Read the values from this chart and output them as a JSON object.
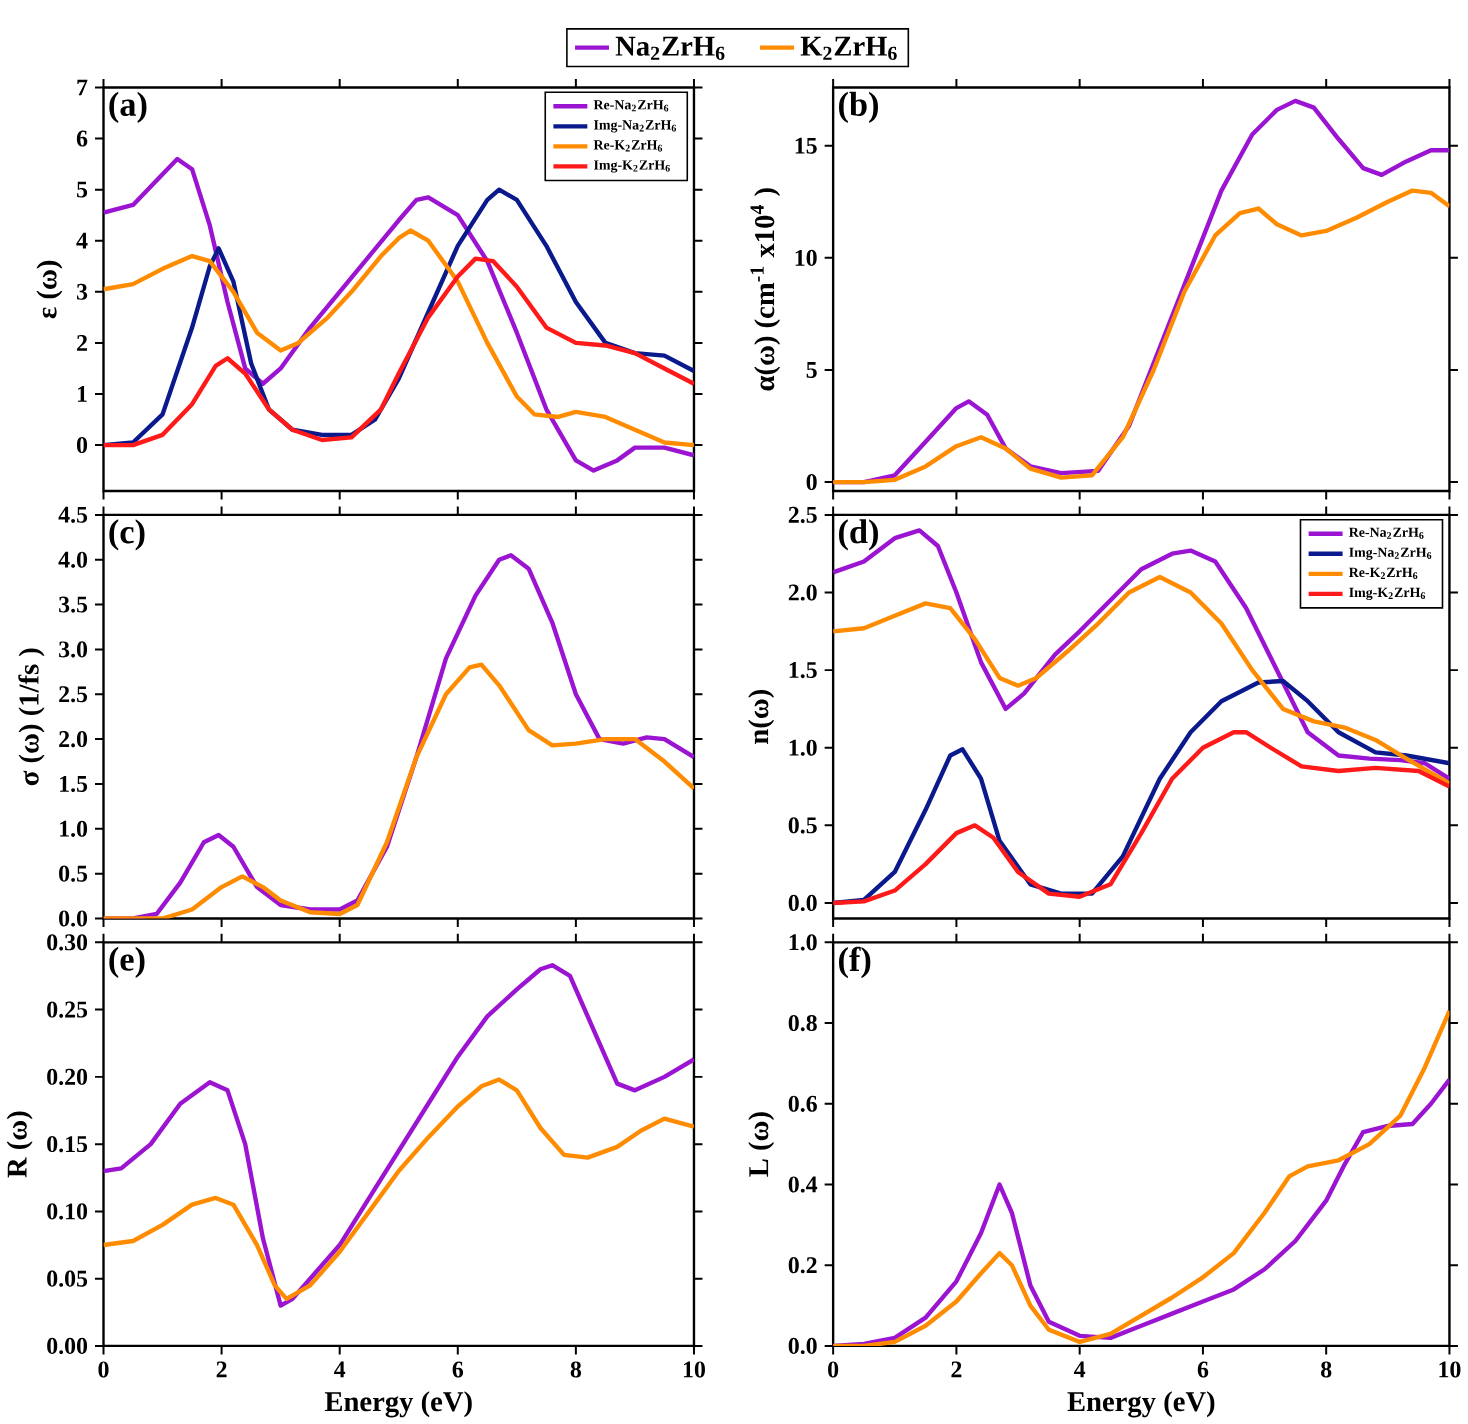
{
  "chart_data": [
    {
      "type": "line",
      "ylabel": "ε (ω)",
      "annotations": [
        "(a)"
      ],
      "xlim": [
        0,
        10
      ],
      "ylim": [
        -0.9,
        7
      ],
      "tick_labels": "y",
      "legend": "top right",
      "xticks": [
        {
          "value": 0,
          "label": null
        },
        {
          "value": 2,
          "label": null
        },
        {
          "value": 4,
          "label": null
        },
        {
          "value": 6,
          "label": null
        },
        {
          "value": 8,
          "label": null
        },
        {
          "value": 10,
          "label": null
        }
      ],
      "yticks": [
        0,
        1,
        2,
        3,
        4,
        5,
        6,
        7
      ],
      "series": [
        {
          "name": "Re-Na$_{2}$ZrH$_{6}$",
          "color": "#9b14d1",
          "x": [
            0,
            0.5,
            1.0,
            1.25,
            1.5,
            1.8,
            2.1,
            2.4,
            2.7,
            3.0,
            3.5,
            4.0,
            4.5,
            5.0,
            5.3,
            5.5,
            6.0,
            6.5,
            7.0,
            7.5,
            8.0,
            8.3,
            8.7,
            9.0,
            9.5,
            10
          ],
          "values": [
            4.55,
            4.7,
            5.3,
            5.6,
            5.4,
            4.3,
            2.8,
            1.5,
            1.2,
            1.5,
            2.3,
            3.0,
            3.7,
            4.4,
            4.8,
            4.85,
            4.5,
            3.6,
            2.2,
            0.7,
            -0.3,
            -0.5,
            -0.3,
            -0.05,
            -0.05,
            -0.2
          ]
        },
        {
          "name": "Img-Na$_{2}$ZrH$_{6}$",
          "color": "#0a1a8c",
          "x": [
            0,
            0.5,
            1.0,
            1.5,
            1.8,
            1.95,
            2.2,
            2.5,
            2.8,
            3.2,
            3.7,
            4.2,
            4.6,
            5.0,
            5.5,
            6.0,
            6.5,
            6.7,
            7.0,
            7.5,
            8.0,
            8.5,
            9.0,
            9.5,
            10
          ],
          "values": [
            0,
            0.05,
            0.6,
            2.3,
            3.5,
            3.85,
            3.2,
            1.6,
            0.7,
            0.3,
            0.2,
            0.2,
            0.5,
            1.3,
            2.6,
            3.9,
            4.8,
            5.0,
            4.8,
            3.9,
            2.8,
            2.0,
            1.8,
            1.75,
            1.45
          ]
        },
        {
          "name": "Re-K$_{2}$ZrH$_{6}$",
          "color": "#ff8c00",
          "x": [
            0,
            0.5,
            1.0,
            1.5,
            1.8,
            2.2,
            2.6,
            3.0,
            3.3,
            3.8,
            4.2,
            4.7,
            5.0,
            5.2,
            5.5,
            6.0,
            6.5,
            7.0,
            7.3,
            7.7,
            8.0,
            8.5,
            9.0,
            9.5,
            10
          ],
          "values": [
            3.05,
            3.15,
            3.45,
            3.7,
            3.6,
            3.0,
            2.2,
            1.85,
            2.0,
            2.5,
            3.0,
            3.7,
            4.05,
            4.2,
            4.0,
            3.2,
            2.0,
            0.95,
            0.6,
            0.55,
            0.65,
            0.55,
            0.3,
            0.05,
            0.0
          ]
        },
        {
          "name": "Img-K$_{2}$ZrH$_{6}$",
          "color": "#ff1a1a",
          "x": [
            0,
            0.5,
            1.0,
            1.5,
            1.9,
            2.1,
            2.4,
            2.8,
            3.2,
            3.7,
            4.2,
            4.7,
            5.0,
            5.5,
            6.0,
            6.3,
            6.6,
            7.0,
            7.5,
            8.0,
            8.5,
            9.0,
            9.5,
            10
          ],
          "values": [
            0,
            0.0,
            0.2,
            0.8,
            1.55,
            1.7,
            1.4,
            0.7,
            0.3,
            0.1,
            0.15,
            0.7,
            1.4,
            2.5,
            3.3,
            3.65,
            3.6,
            3.1,
            2.3,
            2.0,
            1.95,
            1.8,
            1.5,
            1.2
          ]
        }
      ]
    },
    {
      "type": "line",
      "ylabel": "α(ω) (cm$^{-1}$ x10$^{4}$ )",
      "annotations": [
        "(b)"
      ],
      "xlim": [
        0,
        10
      ],
      "ylim": [
        -0.4,
        17.6
      ],
      "tick_labels": "y",
      "legend": "top",
      "xticks": [
        {
          "value": 0,
          "label": null
        },
        {
          "value": 2,
          "label": null
        },
        {
          "value": 4,
          "label": null
        },
        {
          "value": 6,
          "label": null
        },
        {
          "value": 8,
          "label": null
        },
        {
          "value": 10,
          "label": null
        }
      ],
      "yticks": [
        0,
        5,
        10,
        15
      ],
      "series": [
        {
          "name": "Na$_{2}$ZrH$_{6}$",
          "color": "#9b14d1",
          "x": [
            0,
            0.5,
            1.0,
            1.5,
            2.0,
            2.2,
            2.5,
            2.8,
            3.2,
            3.7,
            4.3,
            4.8,
            5.3,
            5.8,
            6.3,
            6.8,
            7.2,
            7.5,
            7.8,
            8.2,
            8.6,
            8.9,
            9.3,
            9.7,
            10
          ],
          "values": [
            0,
            0,
            0.3,
            1.8,
            3.3,
            3.6,
            3.0,
            1.5,
            0.7,
            0.4,
            0.5,
            2.5,
            6.0,
            9.5,
            13.0,
            15.5,
            16.6,
            17.0,
            16.7,
            15.3,
            14.0,
            13.7,
            14.3,
            14.8,
            14.8
          ]
        },
        {
          "name": "K$_{2}$ZrH$_{6}$",
          "color": "#ff8c00",
          "x": [
            0,
            0.5,
            1.0,
            1.5,
            2.0,
            2.4,
            2.8,
            3.2,
            3.7,
            4.2,
            4.7,
            5.2,
            5.7,
            6.2,
            6.6,
            6.9,
            7.2,
            7.6,
            8.0,
            8.5,
            9.0,
            9.4,
            9.7,
            10
          ],
          "values": [
            0,
            0,
            0.1,
            0.7,
            1.6,
            2.0,
            1.5,
            0.6,
            0.2,
            0.3,
            2.0,
            5.0,
            8.5,
            11.0,
            12.0,
            12.2,
            11.5,
            11.0,
            11.2,
            11.8,
            12.5,
            13.0,
            12.9,
            12.3
          ]
        }
      ]
    },
    {
      "type": "line",
      "ylabel": "σ (ω) (1/fs )",
      "annotations": [
        "(c)"
      ],
      "xlim": [
        0,
        10
      ],
      "ylim": [
        0,
        4.5
      ],
      "tick_labels": "y",
      "xticks": [
        {
          "value": 0,
          "label": null
        },
        {
          "value": 2,
          "label": null
        },
        {
          "value": 4,
          "label": null
        },
        {
          "value": 6,
          "label": null
        },
        {
          "value": 8,
          "label": null
        },
        {
          "value": 10,
          "label": null
        }
      ],
      "yticks": [
        {
          "value": 0,
          "label": "0.0"
        },
        0.5,
        {
          "value": 1,
          "label": "1.0"
        },
        1.5,
        {
          "value": 2,
          "label": "2.0"
        },
        2.5,
        {
          "value": 3,
          "label": "3.0"
        },
        3.5,
        {
          "value": 4,
          "label": "4.0"
        },
        4.5
      ],
      "series": [
        {
          "color": "#9b14d1",
          "x": [
            0,
            0.5,
            0.9,
            1.3,
            1.7,
            1.95,
            2.2,
            2.6,
            3.0,
            3.5,
            4.0,
            4.3,
            4.8,
            5.3,
            5.8,
            6.3,
            6.7,
            6.9,
            7.2,
            7.6,
            8.0,
            8.4,
            8.8,
            9.2,
            9.5,
            10
          ],
          "values": [
            0,
            0,
            0.05,
            0.4,
            0.85,
            0.93,
            0.8,
            0.35,
            0.15,
            0.1,
            0.1,
            0.2,
            0.8,
            1.8,
            2.9,
            3.6,
            4.0,
            4.05,
            3.9,
            3.3,
            2.5,
            2.0,
            1.95,
            2.02,
            2.0,
            1.8
          ]
        },
        {
          "color": "#ff8c00",
          "x": [
            0,
            1.0,
            1.5,
            2.0,
            2.35,
            2.7,
            3.0,
            3.5,
            4.0,
            4.3,
            4.8,
            5.3,
            5.8,
            6.2,
            6.4,
            6.7,
            7.2,
            7.6,
            8.0,
            8.5,
            9.0,
            9.5,
            10
          ],
          "values": [
            0,
            0,
            0.1,
            0.35,
            0.47,
            0.35,
            0.2,
            0.07,
            0.05,
            0.15,
            0.85,
            1.8,
            2.5,
            2.8,
            2.83,
            2.6,
            2.1,
            1.93,
            1.95,
            2.0,
            2.0,
            1.75,
            1.45
          ]
        }
      ]
    },
    {
      "type": "line",
      "ylabel": "n(ω)",
      "annotations": [
        "(d)"
      ],
      "xlim": [
        0,
        10
      ],
      "ylim": [
        -0.1,
        2.5
      ],
      "tick_labels": "y",
      "legend": "top right",
      "xticks": [
        {
          "value": 0,
          "label": null
        },
        {
          "value": 2,
          "label": null
        },
        {
          "value": 4,
          "label": null
        },
        {
          "value": 6,
          "label": null
        },
        {
          "value": 8,
          "label": null
        },
        {
          "value": 10,
          "label": null
        }
      ],
      "yticks": [
        {
          "value": 0,
          "label": "0.0"
        },
        0.5,
        {
          "value": 1,
          "label": "1.0"
        },
        1.5,
        {
          "value": 2,
          "label": "2.0"
        },
        2.5
      ],
      "series": [
        {
          "name": "Re-Na$_{2}$ZrH$_{6}$",
          "color": "#9b14d1",
          "x": [
            0,
            0.5,
            1.0,
            1.4,
            1.7,
            2.0,
            2.4,
            2.8,
            3.1,
            3.6,
            4.0,
            4.5,
            5.0,
            5.5,
            5.8,
            6.2,
            6.7,
            7.2,
            7.7,
            8.2,
            8.7,
            9.2,
            9.6,
            10
          ],
          "values": [
            2.13,
            2.2,
            2.35,
            2.4,
            2.3,
            2.0,
            1.55,
            1.25,
            1.35,
            1.6,
            1.75,
            1.95,
            2.15,
            2.25,
            2.27,
            2.2,
            1.9,
            1.5,
            1.1,
            0.95,
            0.93,
            0.92,
            0.9,
            0.8
          ]
        },
        {
          "name": "Img-Na$_{2}$ZrH$_{6}$",
          "color": "#0a1a8c",
          "x": [
            0,
            0.5,
            1.0,
            1.5,
            1.9,
            2.1,
            2.4,
            2.7,
            3.2,
            3.7,
            4.2,
            4.7,
            5.3,
            5.8,
            6.3,
            6.9,
            7.3,
            7.7,
            8.2,
            8.8,
            9.3,
            10
          ],
          "values": [
            0,
            0.02,
            0.2,
            0.6,
            0.95,
            0.99,
            0.8,
            0.4,
            0.12,
            0.06,
            0.06,
            0.3,
            0.8,
            1.1,
            1.3,
            1.42,
            1.43,
            1.3,
            1.1,
            0.97,
            0.95,
            0.9
          ]
        },
        {
          "name": "Re-K$_{2}$ZrH$_{6}$",
          "color": "#ff8c00",
          "x": [
            0,
            0.5,
            1.0,
            1.5,
            1.9,
            2.3,
            2.7,
            3.0,
            3.3,
            3.8,
            4.3,
            4.8,
            5.3,
            5.8,
            6.3,
            6.8,
            7.3,
            7.8,
            8.3,
            8.8,
            9.3,
            10
          ],
          "values": [
            1.75,
            1.77,
            1.85,
            1.93,
            1.9,
            1.7,
            1.45,
            1.4,
            1.45,
            1.62,
            1.8,
            2.0,
            2.1,
            2.0,
            1.8,
            1.5,
            1.25,
            1.17,
            1.13,
            1.05,
            0.93,
            0.77
          ]
        },
        {
          "name": "Img-K$_{2}$ZrH$_{6}$",
          "color": "#ff1a1a",
          "x": [
            0,
            0.5,
            1.0,
            1.5,
            2.0,
            2.3,
            2.6,
            3.0,
            3.5,
            4.0,
            4.5,
            5.0,
            5.5,
            6.0,
            6.5,
            6.7,
            7.1,
            7.6,
            8.2,
            8.8,
            9.5,
            10
          ],
          "values": [
            0,
            0.01,
            0.08,
            0.25,
            0.45,
            0.5,
            0.42,
            0.2,
            0.06,
            0.04,
            0.12,
            0.45,
            0.8,
            1.0,
            1.1,
            1.1,
            1.0,
            0.88,
            0.85,
            0.87,
            0.85,
            0.75
          ]
        }
      ]
    },
    {
      "type": "line",
      "xlabel": "Energy (eV)",
      "ylabel": "R (ω)",
      "annotations": [
        "(e)"
      ],
      "xlim": [
        0,
        10
      ],
      "ylim": [
        0,
        0.3
      ],
      "xticks": [
        0,
        2,
        4,
        6,
        8,
        10
      ],
      "yticks": [
        {
          "value": 0,
          "label": "0.00"
        },
        {
          "value": 0.05,
          "label": "0.05"
        },
        {
          "value": 0.1,
          "label": "0.10"
        },
        {
          "value": 0.15,
          "label": "0.15"
        },
        {
          "value": 0.2,
          "label": "0.20"
        },
        {
          "value": 0.25,
          "label": "0.25"
        },
        {
          "value": 0.3,
          "label": "0.30"
        }
      ],
      "series": [
        {
          "color": "#9b14d1",
          "x": [
            0,
            0.3,
            0.8,
            1.3,
            1.8,
            2.1,
            2.4,
            2.7,
            3.0,
            3.2,
            3.6,
            4.0,
            4.5,
            5.0,
            5.5,
            6.0,
            6.5,
            7.0,
            7.4,
            7.6,
            7.9,
            8.3,
            8.7,
            9.0,
            9.5,
            10
          ],
          "values": [
            0.13,
            0.132,
            0.15,
            0.18,
            0.196,
            0.19,
            0.15,
            0.08,
            0.03,
            0.035,
            0.055,
            0.075,
            0.11,
            0.145,
            0.18,
            0.215,
            0.245,
            0.265,
            0.28,
            0.283,
            0.275,
            0.235,
            0.195,
            0.19,
            0.2,
            0.213
          ]
        },
        {
          "color": "#ff8c00",
          "x": [
            0,
            0.5,
            1.0,
            1.5,
            1.9,
            2.2,
            2.6,
            2.9,
            3.1,
            3.5,
            4.0,
            4.5,
            5.0,
            5.5,
            6.0,
            6.4,
            6.7,
            7.0,
            7.4,
            7.8,
            8.2,
            8.7,
            9.1,
            9.5,
            10
          ],
          "values": [
            0.075,
            0.078,
            0.09,
            0.105,
            0.11,
            0.105,
            0.075,
            0.045,
            0.035,
            0.045,
            0.07,
            0.1,
            0.13,
            0.155,
            0.178,
            0.193,
            0.198,
            0.19,
            0.162,
            0.142,
            0.14,
            0.148,
            0.16,
            0.169,
            0.163
          ]
        }
      ]
    },
    {
      "type": "line",
      "xlabel": "Energy (eV)",
      "ylabel": "L (ω)",
      "annotations": [
        "(f)"
      ],
      "xlim": [
        0,
        10
      ],
      "ylim": [
        0,
        1.0
      ],
      "xticks": [
        0,
        2,
        4,
        6,
        8,
        10
      ],
      "yticks": [
        {
          "value": 0,
          "label": "0.0"
        },
        0.2,
        0.4,
        0.6,
        0.8,
        {
          "value": 1,
          "label": "1.0"
        }
      ],
      "series": [
        {
          "color": "#9b14d1",
          "x": [
            0,
            0.5,
            1.0,
            1.5,
            2.0,
            2.4,
            2.7,
            2.9,
            3.2,
            3.5,
            4.0,
            4.5,
            5.0,
            5.5,
            6.0,
            6.5,
            7.0,
            7.5,
            8.0,
            8.3,
            8.6,
            9.0,
            9.4,
            9.7,
            10
          ],
          "values": [
            0,
            0.005,
            0.02,
            0.07,
            0.16,
            0.28,
            0.4,
            0.33,
            0.15,
            0.06,
            0.025,
            0.02,
            0.05,
            0.08,
            0.11,
            0.14,
            0.19,
            0.26,
            0.36,
            0.45,
            0.53,
            0.545,
            0.55,
            0.6,
            0.66
          ]
        },
        {
          "color": "#ff8c00",
          "x": [
            0,
            0.5,
            1.0,
            1.5,
            2.0,
            2.4,
            2.7,
            2.9,
            3.2,
            3.5,
            4.0,
            4.5,
            5.0,
            5.5,
            6.0,
            6.5,
            7.0,
            7.4,
            7.7,
            8.2,
            8.7,
            9.2,
            9.6,
            10
          ],
          "values": [
            0,
            0,
            0.01,
            0.05,
            0.11,
            0.18,
            0.23,
            0.2,
            0.1,
            0.04,
            0.01,
            0.03,
            0.075,
            0.12,
            0.17,
            0.23,
            0.33,
            0.42,
            0.445,
            0.46,
            0.5,
            0.57,
            0.69,
            0.83
          ]
        }
      ]
    }
  ]
}
